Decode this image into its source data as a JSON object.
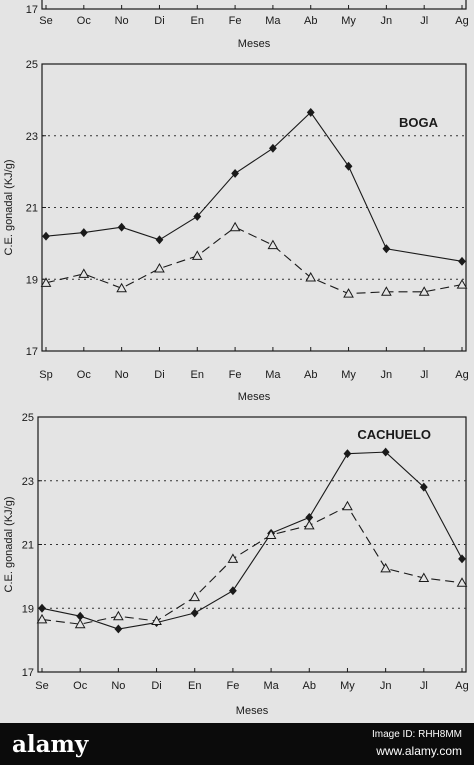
{
  "chart_data": [
    {
      "type": "line",
      "panel": "top-partial",
      "title": "",
      "xlabel": "Meses",
      "ylabel": "",
      "categories": [
        "Se",
        "Oc",
        "No",
        "Di",
        "En",
        "Fe",
        "Ma",
        "Ab",
        "My",
        "Jn",
        "Jl",
        "Ag"
      ],
      "yticks": [
        "17"
      ],
      "series": []
    },
    {
      "type": "line",
      "panel": "boga",
      "title": "BOGA",
      "xlabel": "Meses",
      "ylabel": "C.E. gonadal (KJ/g)",
      "categories": [
        "Sp",
        "Oc",
        "No",
        "Di",
        "En",
        "Fe",
        "Ma",
        "Ab",
        "My",
        "Jn",
        "Jl",
        "Ag"
      ],
      "ylim": [
        17,
        25
      ],
      "yticks": [
        "17",
        "19",
        "21",
        "23",
        "25"
      ],
      "gridlines": [
        19,
        21,
        23
      ],
      "series": [
        {
          "marker": "diamond",
          "style": "solid",
          "values": [
            20.2,
            20.3,
            20.45,
            20.1,
            20.75,
            21.95,
            22.65,
            23.65,
            22.15,
            19.85,
            null,
            19.5
          ]
        },
        {
          "marker": "triangle",
          "style": "dashed",
          "values": [
            18.9,
            19.15,
            18.75,
            19.3,
            19.65,
            20.45,
            19.95,
            19.05,
            18.6,
            18.65,
            18.65,
            18.85
          ]
        }
      ]
    },
    {
      "type": "line",
      "panel": "cachuelo",
      "title": "CACHUELO",
      "xlabel": "Meses",
      "ylabel": "C.E. gonadal (KJ/g)",
      "categories": [
        "Se",
        "Oc",
        "No",
        "Di",
        "En",
        "Fe",
        "Ma",
        "Ab",
        "My",
        "Jn",
        "Jl",
        "Ag"
      ],
      "ylim": [
        17,
        25
      ],
      "yticks": [
        "17",
        "19",
        "21",
        "23",
        "25"
      ],
      "gridlines": [
        19,
        21,
        23
      ],
      "series": [
        {
          "marker": "diamond",
          "style": "solid",
          "values": [
            19.0,
            18.75,
            18.35,
            18.55,
            18.85,
            19.55,
            21.35,
            21.85,
            23.85,
            23.9,
            22.8,
            20.55
          ]
        },
        {
          "marker": "triangle",
          "style": "dashed",
          "values": [
            18.65,
            18.5,
            18.75,
            18.6,
            19.35,
            20.55,
            21.3,
            21.6,
            22.2,
            20.25,
            19.95,
            19.8
          ]
        }
      ]
    }
  ],
  "watermark": {
    "logo": "alamy",
    "image_id": "Image ID: RHH8MM",
    "url": "www.alamy.com"
  }
}
